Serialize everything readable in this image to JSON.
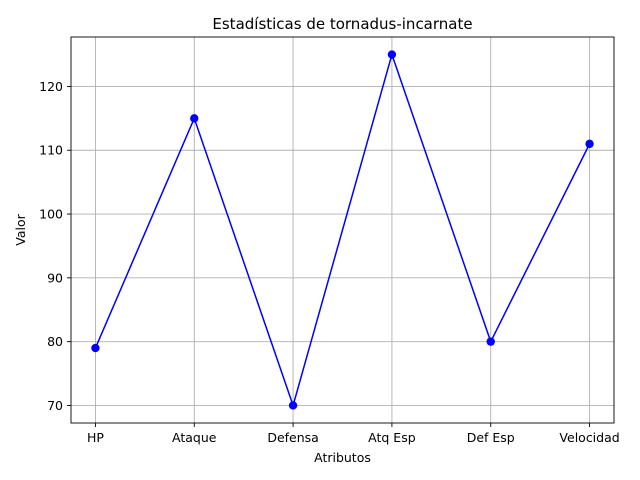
{
  "chart_data": {
    "type": "line",
    "title": "Estadísticas de tornadus-incarnate",
    "xlabel": "Atributos",
    "ylabel": "Valor",
    "categories": [
      "HP",
      "Ataque",
      "Defensa",
      "Atq Esp",
      "Def Esp",
      "Velocidad"
    ],
    "series": [
      {
        "values": [
          79,
          115,
          70,
          125,
          80,
          111
        ],
        "color": "#0000ff",
        "marker": "circle"
      }
    ],
    "ylim": [
      67.25,
      127.75
    ],
    "yticks": [
      70,
      80,
      90,
      100,
      110,
      120
    ],
    "grid": true
  }
}
